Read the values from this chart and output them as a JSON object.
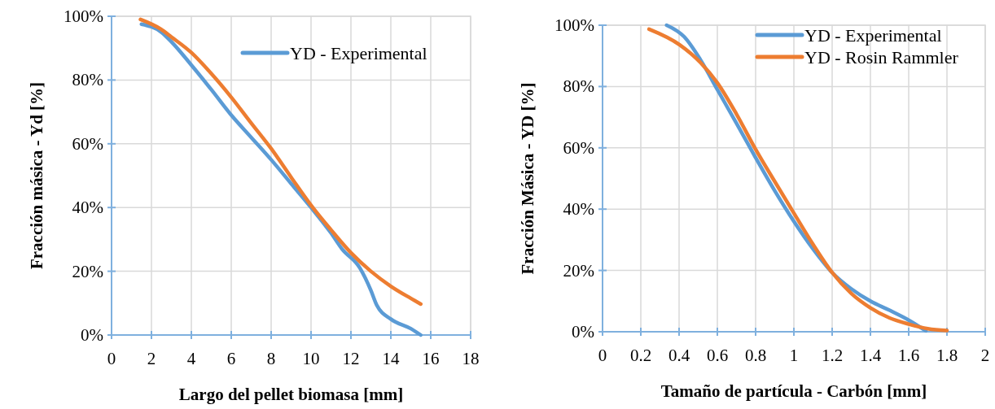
{
  "chart_data": [
    {
      "type": "line",
      "xlabel": "Largo del pellet biomasa [mm]",
      "ylabel": "Fracción másica - Yd [%]",
      "xlim": [
        0,
        18
      ],
      "xticks": [
        0,
        2,
        4,
        6,
        8,
        10,
        12,
        14,
        16,
        18
      ],
      "ylim": [
        0,
        100
      ],
      "yticks": [
        {
          "value": 0,
          "label": "0%"
        },
        {
          "value": 20,
          "label": "20%"
        },
        {
          "value": 40,
          "label": "40%"
        },
        {
          "value": 60,
          "label": "60%"
        },
        {
          "value": 80,
          "label": "80%"
        },
        {
          "value": 100,
          "label": "100%"
        }
      ],
      "grid": true,
      "legend": "top right",
      "series": [
        {
          "name": "YD - Experimental",
          "color": "#5b9bd5",
          "x": [
            1.5,
            2.5,
            3,
            4,
            5,
            6,
            7,
            8,
            9,
            10,
            11,
            11.55,
            12.45,
            13,
            13.3,
            14,
            15,
            15.5
          ],
          "values": [
            97.5,
            95,
            92,
            84.7,
            77,
            69,
            62,
            55,
            47.5,
            40,
            32,
            27,
            21,
            14,
            9.3,
            5,
            2,
            0
          ]
        },
        {
          "color": "#ed7d31",
          "x": [
            1.45,
            2.46,
            3,
            4,
            5,
            6,
            7,
            8,
            9,
            10,
            11,
            12,
            13,
            14,
            15,
            15.5
          ],
          "values": [
            99,
            96,
            93.5,
            88.6,
            82,
            74.6,
            66.5,
            58.5,
            49.5,
            40.7,
            33,
            25.8,
            20,
            15.3,
            11.5,
            9.7
          ]
        }
      ]
    },
    {
      "type": "line",
      "xlabel": "Tamaño de partícula - Carbón [mm]",
      "ylabel": "Fracción Másica - YD [%]",
      "xlim": [
        0,
        2
      ],
      "xticks": [
        0,
        0.2,
        0.4,
        0.6,
        0.8,
        1,
        1.2,
        1.4,
        1.6,
        1.8,
        2
      ],
      "ylim": [
        0,
        100
      ],
      "yticks": [
        {
          "value": 0,
          "label": "0%"
        },
        {
          "value": 20,
          "label": "20%"
        },
        {
          "value": 40,
          "label": "40%"
        },
        {
          "value": 60,
          "label": "60%"
        },
        {
          "value": 80,
          "label": "80%"
        },
        {
          "value": 100,
          "label": "100%"
        }
      ],
      "grid": true,
      "legend": "top right",
      "series": [
        {
          "name": "YD - Experimental",
          "color": "#5b9bd5",
          "x": [
            0.335,
            0.427,
            0.512,
            0.6,
            0.7,
            0.8,
            0.9,
            1,
            1.1,
            1.2,
            1.3,
            1.4,
            1.5,
            1.6,
            1.69
          ],
          "values": [
            100,
            96.2,
            88.7,
            79,
            68,
            56.8,
            46,
            36,
            27,
            19.3,
            14,
            10,
            7,
            3.8,
            0.3
          ]
        },
        {
          "name": "YD - Rosin Rammler",
          "color": "#ed7d31",
          "x": [
            0.243,
            0.403,
            0.512,
            0.6,
            0.7,
            0.8,
            0.9,
            1,
            1.1,
            1.2,
            1.3,
            1.4,
            1.5,
            1.6,
            1.7,
            1.8
          ],
          "values": [
            98.7,
            93.6,
            87.8,
            81.2,
            71,
            59.5,
            49,
            38.7,
            28.5,
            19.3,
            12.5,
            7.8,
            4.5,
            2.5,
            1,
            0.4
          ]
        }
      ]
    }
  ]
}
